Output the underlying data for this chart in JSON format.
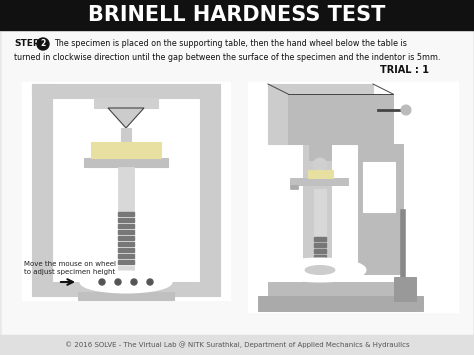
{
  "title": "BRINELL HARDNESS TEST",
  "title_bg": "#111111",
  "title_color": "#ffffff",
  "title_fontsize": 15,
  "step_text_line1": "The specimen is placed on the supporting table, then the hand wheel below the table is",
  "step_text_line2": "turned in clockwise direction until the gap between the surface of the specimen and the indentor is 5mm.",
  "trial_text": "TRIAL : 1",
  "note_text": "Move the mouse on wheel\nto adjust specimen height",
  "footer_text": "© 2016 SOLVE - The Virtual Lab @ NITK Surathkal, Department of Applied Mechanics & Hydraulics",
  "bg_color": "#e8e8e8",
  "white_bg": "#f8f8f8",
  "specimen_color": "#e8e0a0",
  "highlight_color": "#cc0000",
  "line_color": "#444444",
  "gray_dark": "#888888",
  "gray_mid": "#bbbbbb",
  "gray_light": "#dddddd"
}
